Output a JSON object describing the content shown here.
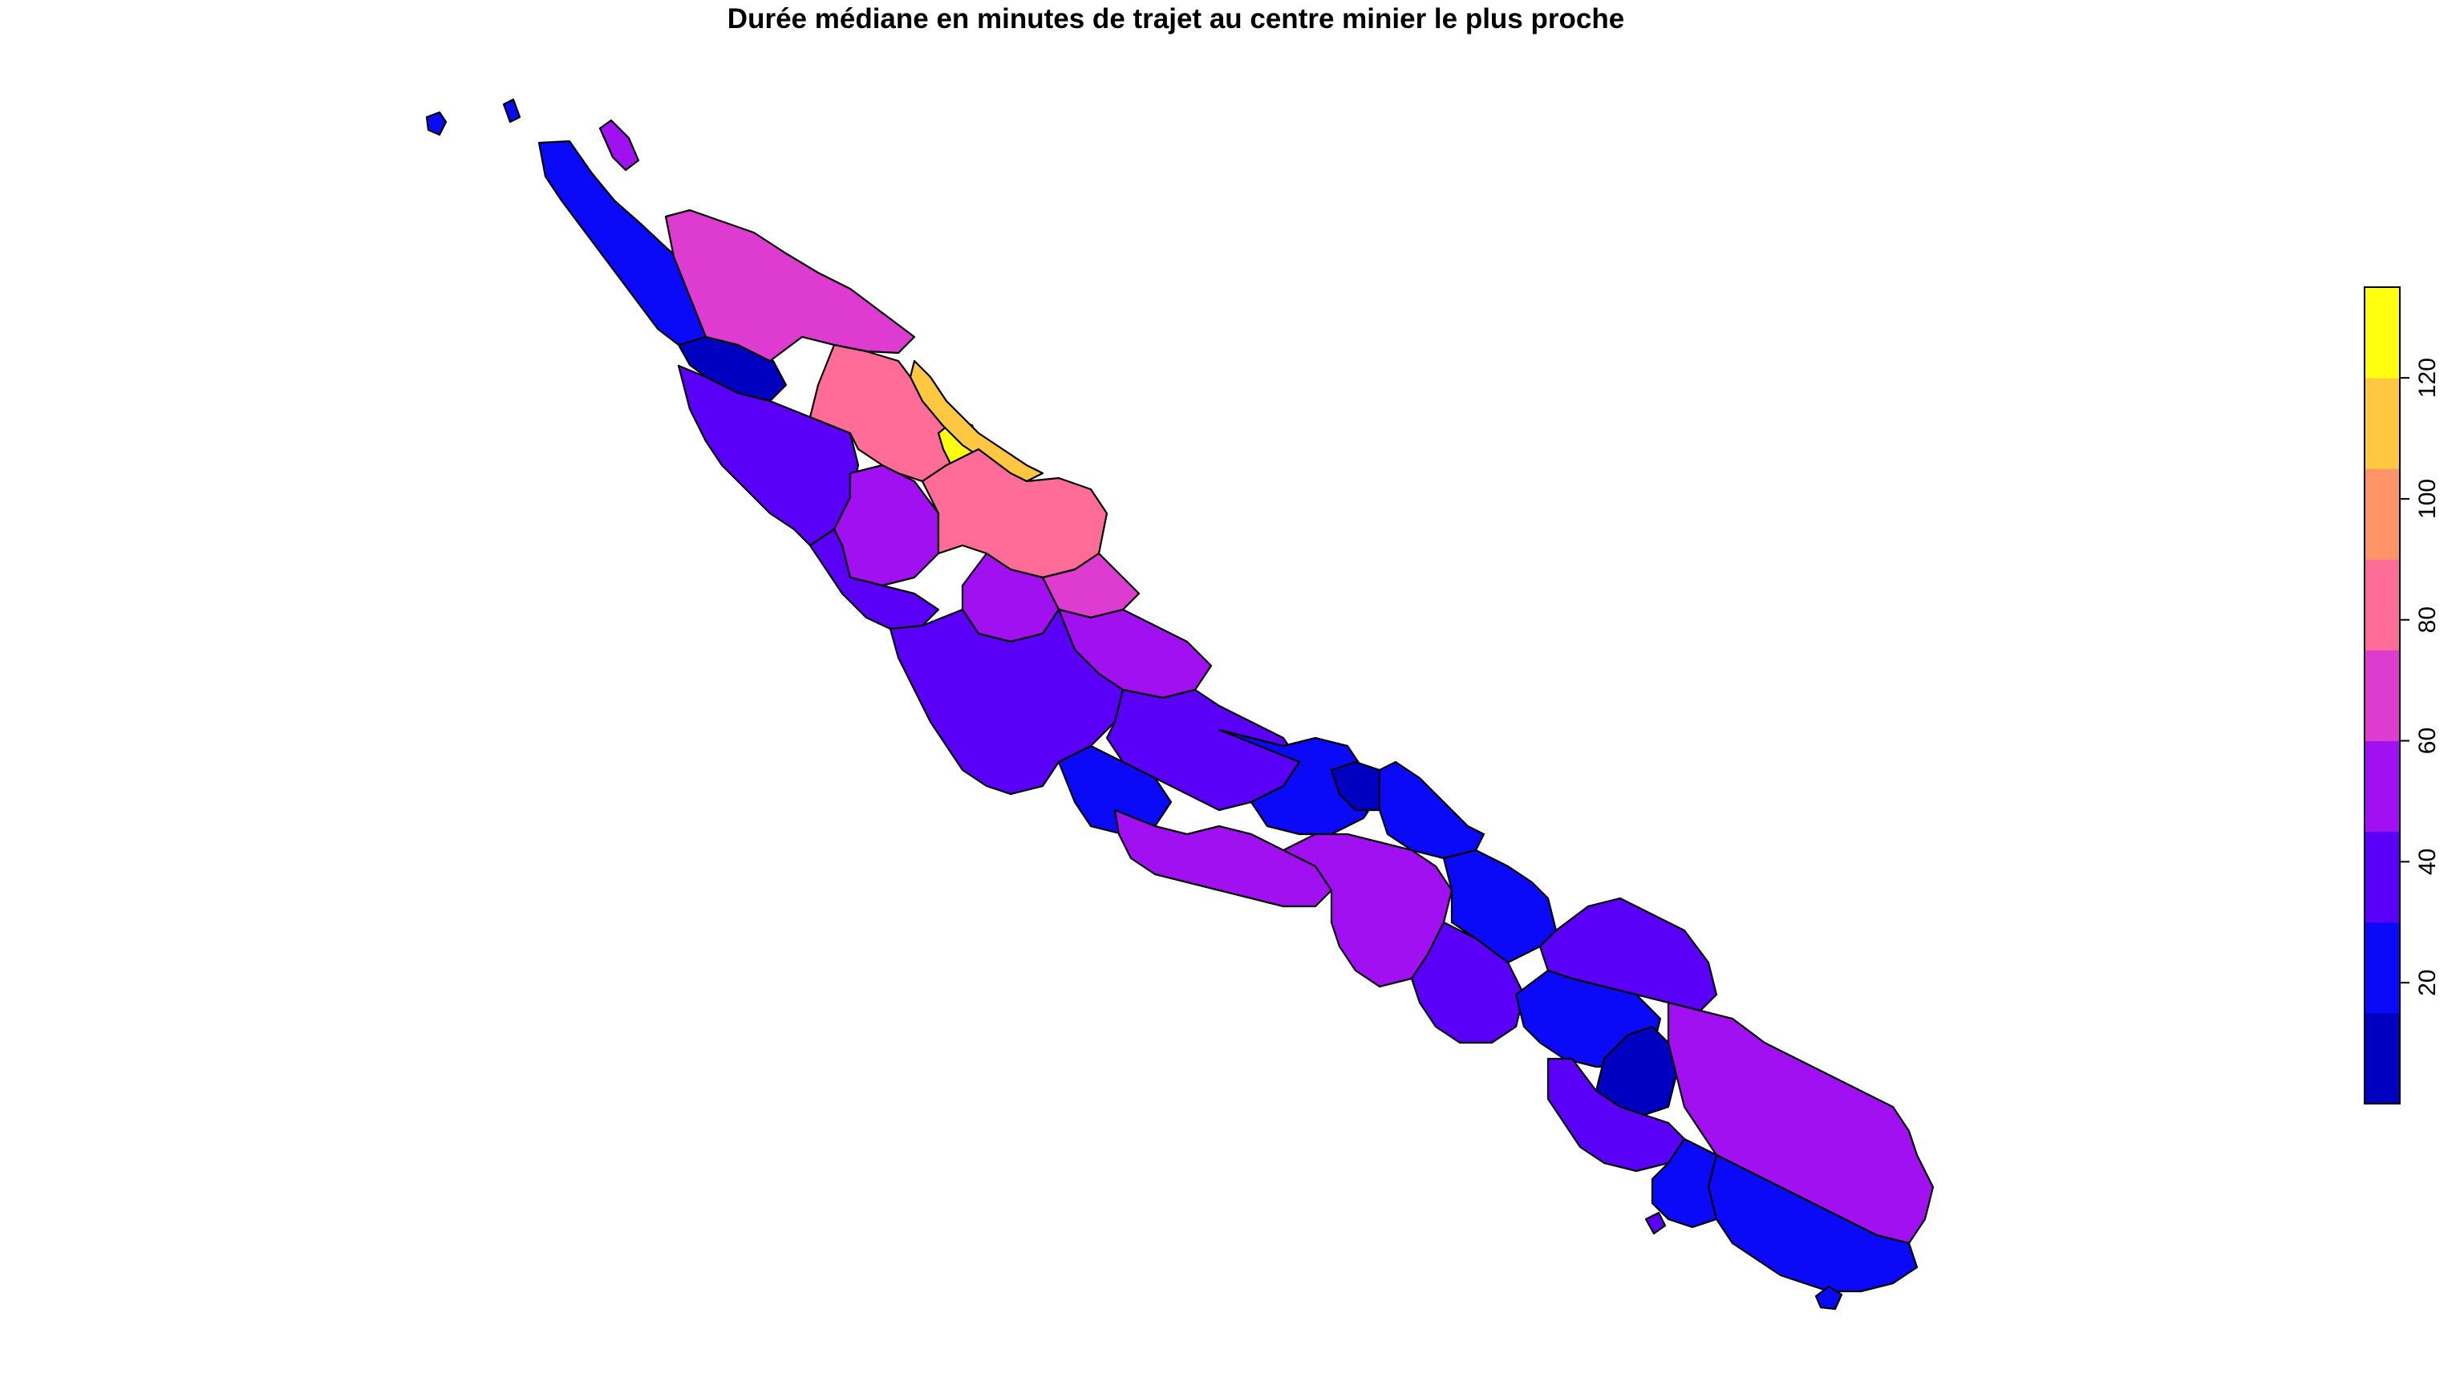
{
  "title": "Durée médiane en minutes de trajet au centre minier le plus proche",
  "palette": [
    "#0000C0",
    "#0A0AF8",
    "#5A00F8",
    "#A010F0",
    "#DE3CD0",
    "#FF6C98",
    "#FF9468",
    "#FFC840",
    "#FFFF10"
  ],
  "legend": {
    "ticks": [
      "20",
      "40",
      "60",
      "80",
      "100",
      "120"
    ],
    "tick_values": [
      20,
      40,
      60,
      80,
      100,
      120
    ],
    "min": 0,
    "max": 135
  },
  "regions": [
    {
      "id": "r01",
      "level": 1
    },
    {
      "id": "r02",
      "level": 1
    },
    {
      "id": "r03",
      "level": 0
    },
    {
      "id": "r04",
      "level": 1
    },
    {
      "id": "r05",
      "level": 3
    },
    {
      "id": "r06",
      "level": 4
    },
    {
      "id": "r07",
      "level": 5
    },
    {
      "id": "r08",
      "level": 8
    },
    {
      "id": "r09",
      "level": 7
    },
    {
      "id": "r10",
      "level": 5
    },
    {
      "id": "r11",
      "level": 4
    },
    {
      "id": "r12",
      "level": 2
    },
    {
      "id": "r13",
      "level": 3
    },
    {
      "id": "r14",
      "level": 3
    },
    {
      "id": "r15",
      "level": 2
    },
    {
      "id": "r16",
      "level": 3
    },
    {
      "id": "r17",
      "level": 2
    },
    {
      "id": "r18",
      "level": 1
    },
    {
      "id": "r19",
      "level": 1
    },
    {
      "id": "r20",
      "level": 0
    },
    {
      "id": "r21",
      "level": 1
    },
    {
      "id": "r22",
      "level": 2
    },
    {
      "id": "r23",
      "level": 3
    },
    {
      "id": "r24",
      "level": 3
    },
    {
      "id": "r25",
      "level": 2
    },
    {
      "id": "r26",
      "level": 1
    },
    {
      "id": "r27",
      "level": 2
    },
    {
      "id": "r28",
      "level": 1
    },
    {
      "id": "r29",
      "level": 0
    },
    {
      "id": "r30",
      "level": 3
    },
    {
      "id": "r31",
      "level": 2
    },
    {
      "id": "r32",
      "level": 1
    },
    {
      "id": "r33",
      "level": 1
    }
  ]
}
